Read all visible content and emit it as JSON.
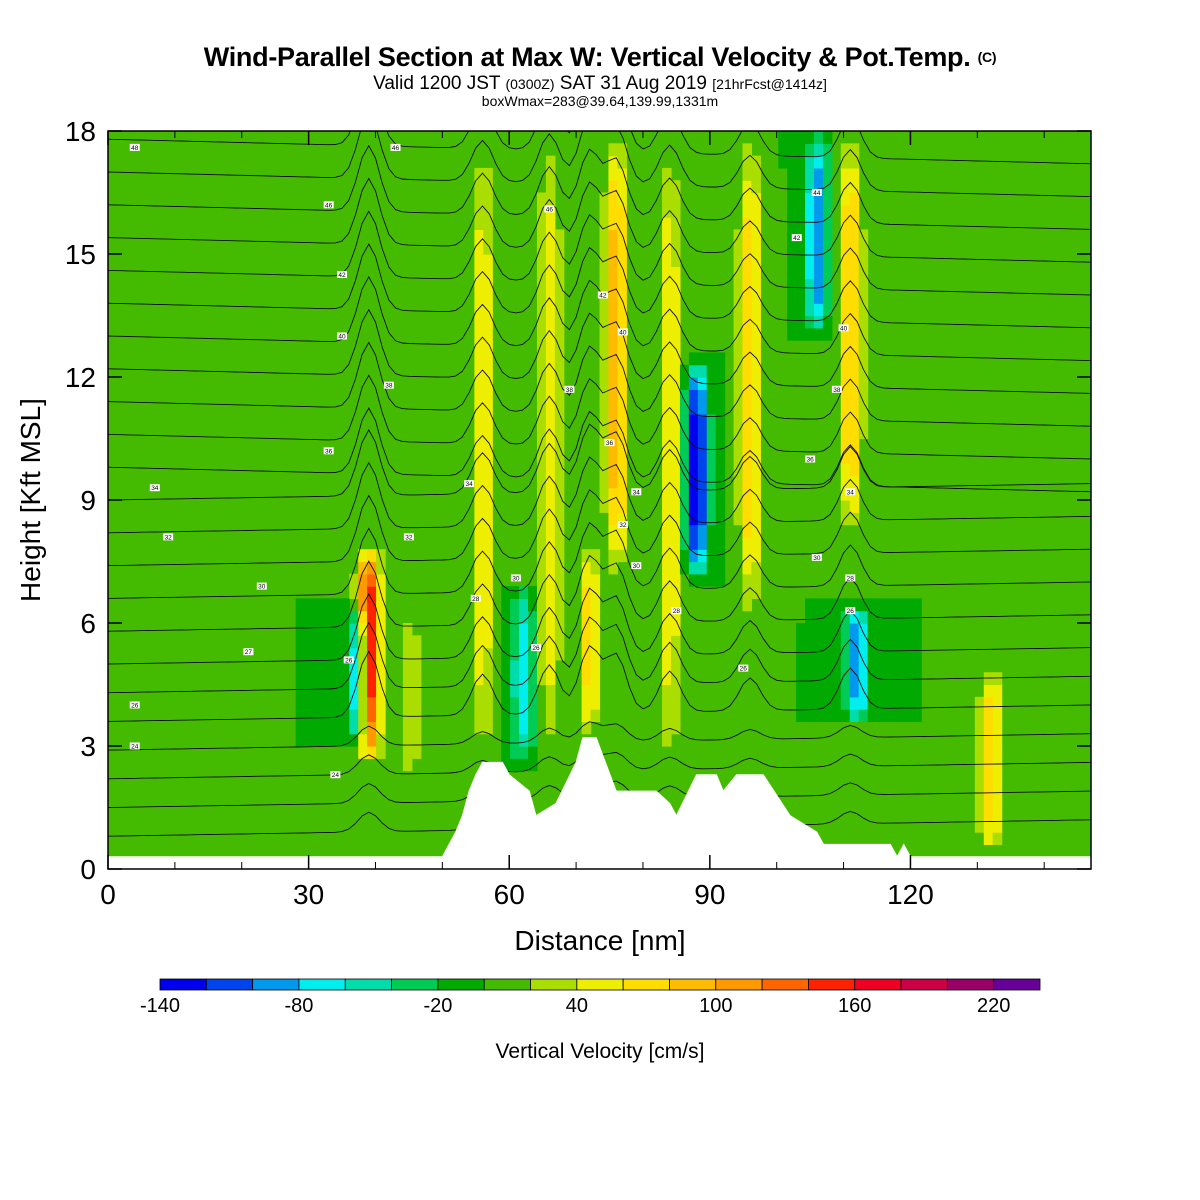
{
  "title": {
    "main": "Wind-Parallel Section at Max W: Vertical Velocity & Pot.Temp.",
    "copyright": "(C)",
    "valid_prefix": "Valid 1200 JST",
    "valid_utc": "(0300Z)",
    "valid_date": "SAT 31 Aug 2019",
    "forecast": "[21hrFcst@1414z]",
    "boxmax": "boxWmax=283@39.64,139.99,1331m"
  },
  "chart_data": {
    "type": "heatmap",
    "xlabel": "Distance [nm]",
    "ylabel": "Height [Kft MSL]",
    "xlim": [
      0,
      147
    ],
    "ylim": [
      0,
      18
    ],
    "x_ticks": [
      0,
      30,
      60,
      90,
      120
    ],
    "y_ticks": [
      0,
      3,
      6,
      9,
      12,
      15,
      18
    ],
    "colorbar": {
      "label": "Vertical Velocity [cm/s]",
      "min": -140,
      "step": 20,
      "tick_labels": [
        "-140",
        "-80",
        "-20",
        "40",
        "100",
        "160",
        "220"
      ],
      "tick_values": [
        -140,
        -80,
        -20,
        40,
        100,
        160,
        220
      ],
      "colors": [
        "#0000ee",
        "#0044ee",
        "#0099ee",
        "#00eeee",
        "#00ddaa",
        "#00cc55",
        "#00aa00",
        "#44bb00",
        "#aadd00",
        "#eeee00",
        "#ffdd00",
        "#ffbb00",
        "#ff9900",
        "#ff6600",
        "#ff2200",
        "#ee0022",
        "#cc0044",
        "#990066",
        "#660099"
      ]
    },
    "background_velocity": 0,
    "updraft_bands": [
      {
        "x": 39,
        "z_min": 2.5,
        "z_max": 8,
        "peak": 180
      },
      {
        "x": 45,
        "z_min": 2,
        "z_max": 6.5,
        "peak": 40
      },
      {
        "x": 56,
        "z_min": 2.3,
        "z_max": 18,
        "peak": 60
      },
      {
        "x": 66,
        "z_min": 2.5,
        "z_max": 18,
        "peak": 60
      },
      {
        "x": 72,
        "z_min": 3.2,
        "z_max": 8,
        "peak": 70
      },
      {
        "x": 76,
        "z_min": 7,
        "z_max": 18,
        "peak": 100
      },
      {
        "x": 84,
        "z_min": 2.3,
        "z_max": 18,
        "peak": 60
      },
      {
        "x": 96,
        "z_min": 6,
        "z_max": 18,
        "peak": 80
      },
      {
        "x": 111,
        "z_min": 8,
        "z_max": 18,
        "peak": 90
      },
      {
        "x": 132,
        "z_min": 0.3,
        "z_max": 5,
        "peak": 80
      }
    ],
    "downdraft_bands": [
      {
        "x": 37.5,
        "z_min": 3,
        "z_max": 6.5,
        "peak": -110
      },
      {
        "x": 62,
        "z_min": 2.5,
        "z_max": 7,
        "peak": -70
      },
      {
        "x": 88,
        "z_min": 7,
        "z_max": 12.5,
        "peak": -140
      },
      {
        "x": 106,
        "z_min": 13,
        "z_max": 18,
        "peak": -100
      },
      {
        "x": 112,
        "z_min": 3.5,
        "z_max": 6.5,
        "peak": -100
      }
    ],
    "terrain_kft": [
      {
        "x": 0,
        "z": 0.3
      },
      {
        "x": 50,
        "z": 0.3
      },
      {
        "x": 51,
        "z": 0.6
      },
      {
        "x": 52,
        "z": 0.9
      },
      {
        "x": 53,
        "z": 1.3
      },
      {
        "x": 54,
        "z": 1.9
      },
      {
        "x": 55,
        "z": 2.3
      },
      {
        "x": 56,
        "z": 2.6
      },
      {
        "x": 59,
        "z": 2.6
      },
      {
        "x": 60,
        "z": 2.3
      },
      {
        "x": 63,
        "z": 1.9
      },
      {
        "x": 64,
        "z": 1.3
      },
      {
        "x": 67,
        "z": 1.6
      },
      {
        "x": 70,
        "z": 2.6
      },
      {
        "x": 71,
        "z": 3.2
      },
      {
        "x": 73,
        "z": 3.2
      },
      {
        "x": 76,
        "z": 1.9
      },
      {
        "x": 82,
        "z": 1.9
      },
      {
        "x": 84,
        "z": 1.6
      },
      {
        "x": 85,
        "z": 1.3
      },
      {
        "x": 88,
        "z": 2.3
      },
      {
        "x": 91,
        "z": 2.3
      },
      {
        "x": 92,
        "z": 1.9
      },
      {
        "x": 94,
        "z": 2.3
      },
      {
        "x": 98,
        "z": 2.3
      },
      {
        "x": 102,
        "z": 1.3
      },
      {
        "x": 106,
        "z": 0.9
      },
      {
        "x": 107,
        "z": 0.6
      },
      {
        "x": 117,
        "z": 0.6
      },
      {
        "x": 118,
        "z": 0.3
      },
      {
        "x": 119,
        "z": 0.6
      },
      {
        "x": 120,
        "z": 0.3
      },
      {
        "x": 147,
        "z": 0.3
      }
    ],
    "isentrope_base_kft": [
      0.8,
      1.5,
      2.2,
      2.9,
      3.6,
      4.3,
      5.0,
      5.8,
      6.6,
      7.4,
      8.2,
      9.0,
      9.8,
      10.6,
      11.4,
      12.2,
      13.0,
      13.8,
      14.6,
      15.4,
      16.2,
      17.0,
      17.8
    ],
    "isentrope_labels": [
      {
        "x": 4,
        "z": 17.6,
        "text": "48"
      },
      {
        "x": 43,
        "z": 17.6,
        "text": "46"
      },
      {
        "x": 33,
        "z": 16.2,
        "text": "46"
      },
      {
        "x": 66,
        "z": 16.1,
        "text": "46"
      },
      {
        "x": 35,
        "z": 14.5,
        "text": "42"
      },
      {
        "x": 74,
        "z": 14.0,
        "text": "42"
      },
      {
        "x": 35,
        "z": 13.0,
        "text": "40"
      },
      {
        "x": 77,
        "z": 13.1,
        "text": "40"
      },
      {
        "x": 106,
        "z": 16.5,
        "text": "44"
      },
      {
        "x": 103,
        "z": 15.4,
        "text": "42"
      },
      {
        "x": 110,
        "z": 13.2,
        "text": "40"
      },
      {
        "x": 42,
        "z": 11.8,
        "text": "38"
      },
      {
        "x": 69,
        "z": 11.7,
        "text": "38"
      },
      {
        "x": 109,
        "z": 11.7,
        "text": "38"
      },
      {
        "x": 33,
        "z": 10.2,
        "text": "36"
      },
      {
        "x": 75,
        "z": 10.4,
        "text": "36"
      },
      {
        "x": 105,
        "z": 10.0,
        "text": "36"
      },
      {
        "x": 7,
        "z": 9.3,
        "text": "34"
      },
      {
        "x": 54,
        "z": 9.4,
        "text": "34"
      },
      {
        "x": 79,
        "z": 9.2,
        "text": "34"
      },
      {
        "x": 111,
        "z": 9.2,
        "text": "34"
      },
      {
        "x": 9,
        "z": 8.1,
        "text": "32"
      },
      {
        "x": 45,
        "z": 8.1,
        "text": "32"
      },
      {
        "x": 77,
        "z": 8.4,
        "text": "32"
      },
      {
        "x": 23,
        "z": 6.9,
        "text": "30"
      },
      {
        "x": 61,
        "z": 7.1,
        "text": "30"
      },
      {
        "x": 79,
        "z": 7.4,
        "text": "30"
      },
      {
        "x": 106,
        "z": 7.6,
        "text": "30"
      },
      {
        "x": 111,
        "z": 7.1,
        "text": "28"
      },
      {
        "x": 55,
        "z": 6.6,
        "text": "28"
      },
      {
        "x": 85,
        "z": 6.3,
        "text": "28"
      },
      {
        "x": 111,
        "z": 6.3,
        "text": "26"
      },
      {
        "x": 21,
        "z": 5.3,
        "text": "27"
      },
      {
        "x": 36,
        "z": 5.1,
        "text": "26"
      },
      {
        "x": 64,
        "z": 5.4,
        "text": "26"
      },
      {
        "x": 95,
        "z": 4.9,
        "text": "26"
      },
      {
        "x": 4,
        "z": 4.0,
        "text": "26"
      },
      {
        "x": 4,
        "z": 3.0,
        "text": "24"
      },
      {
        "x": 34,
        "z": 2.3,
        "text": "24"
      }
    ]
  }
}
